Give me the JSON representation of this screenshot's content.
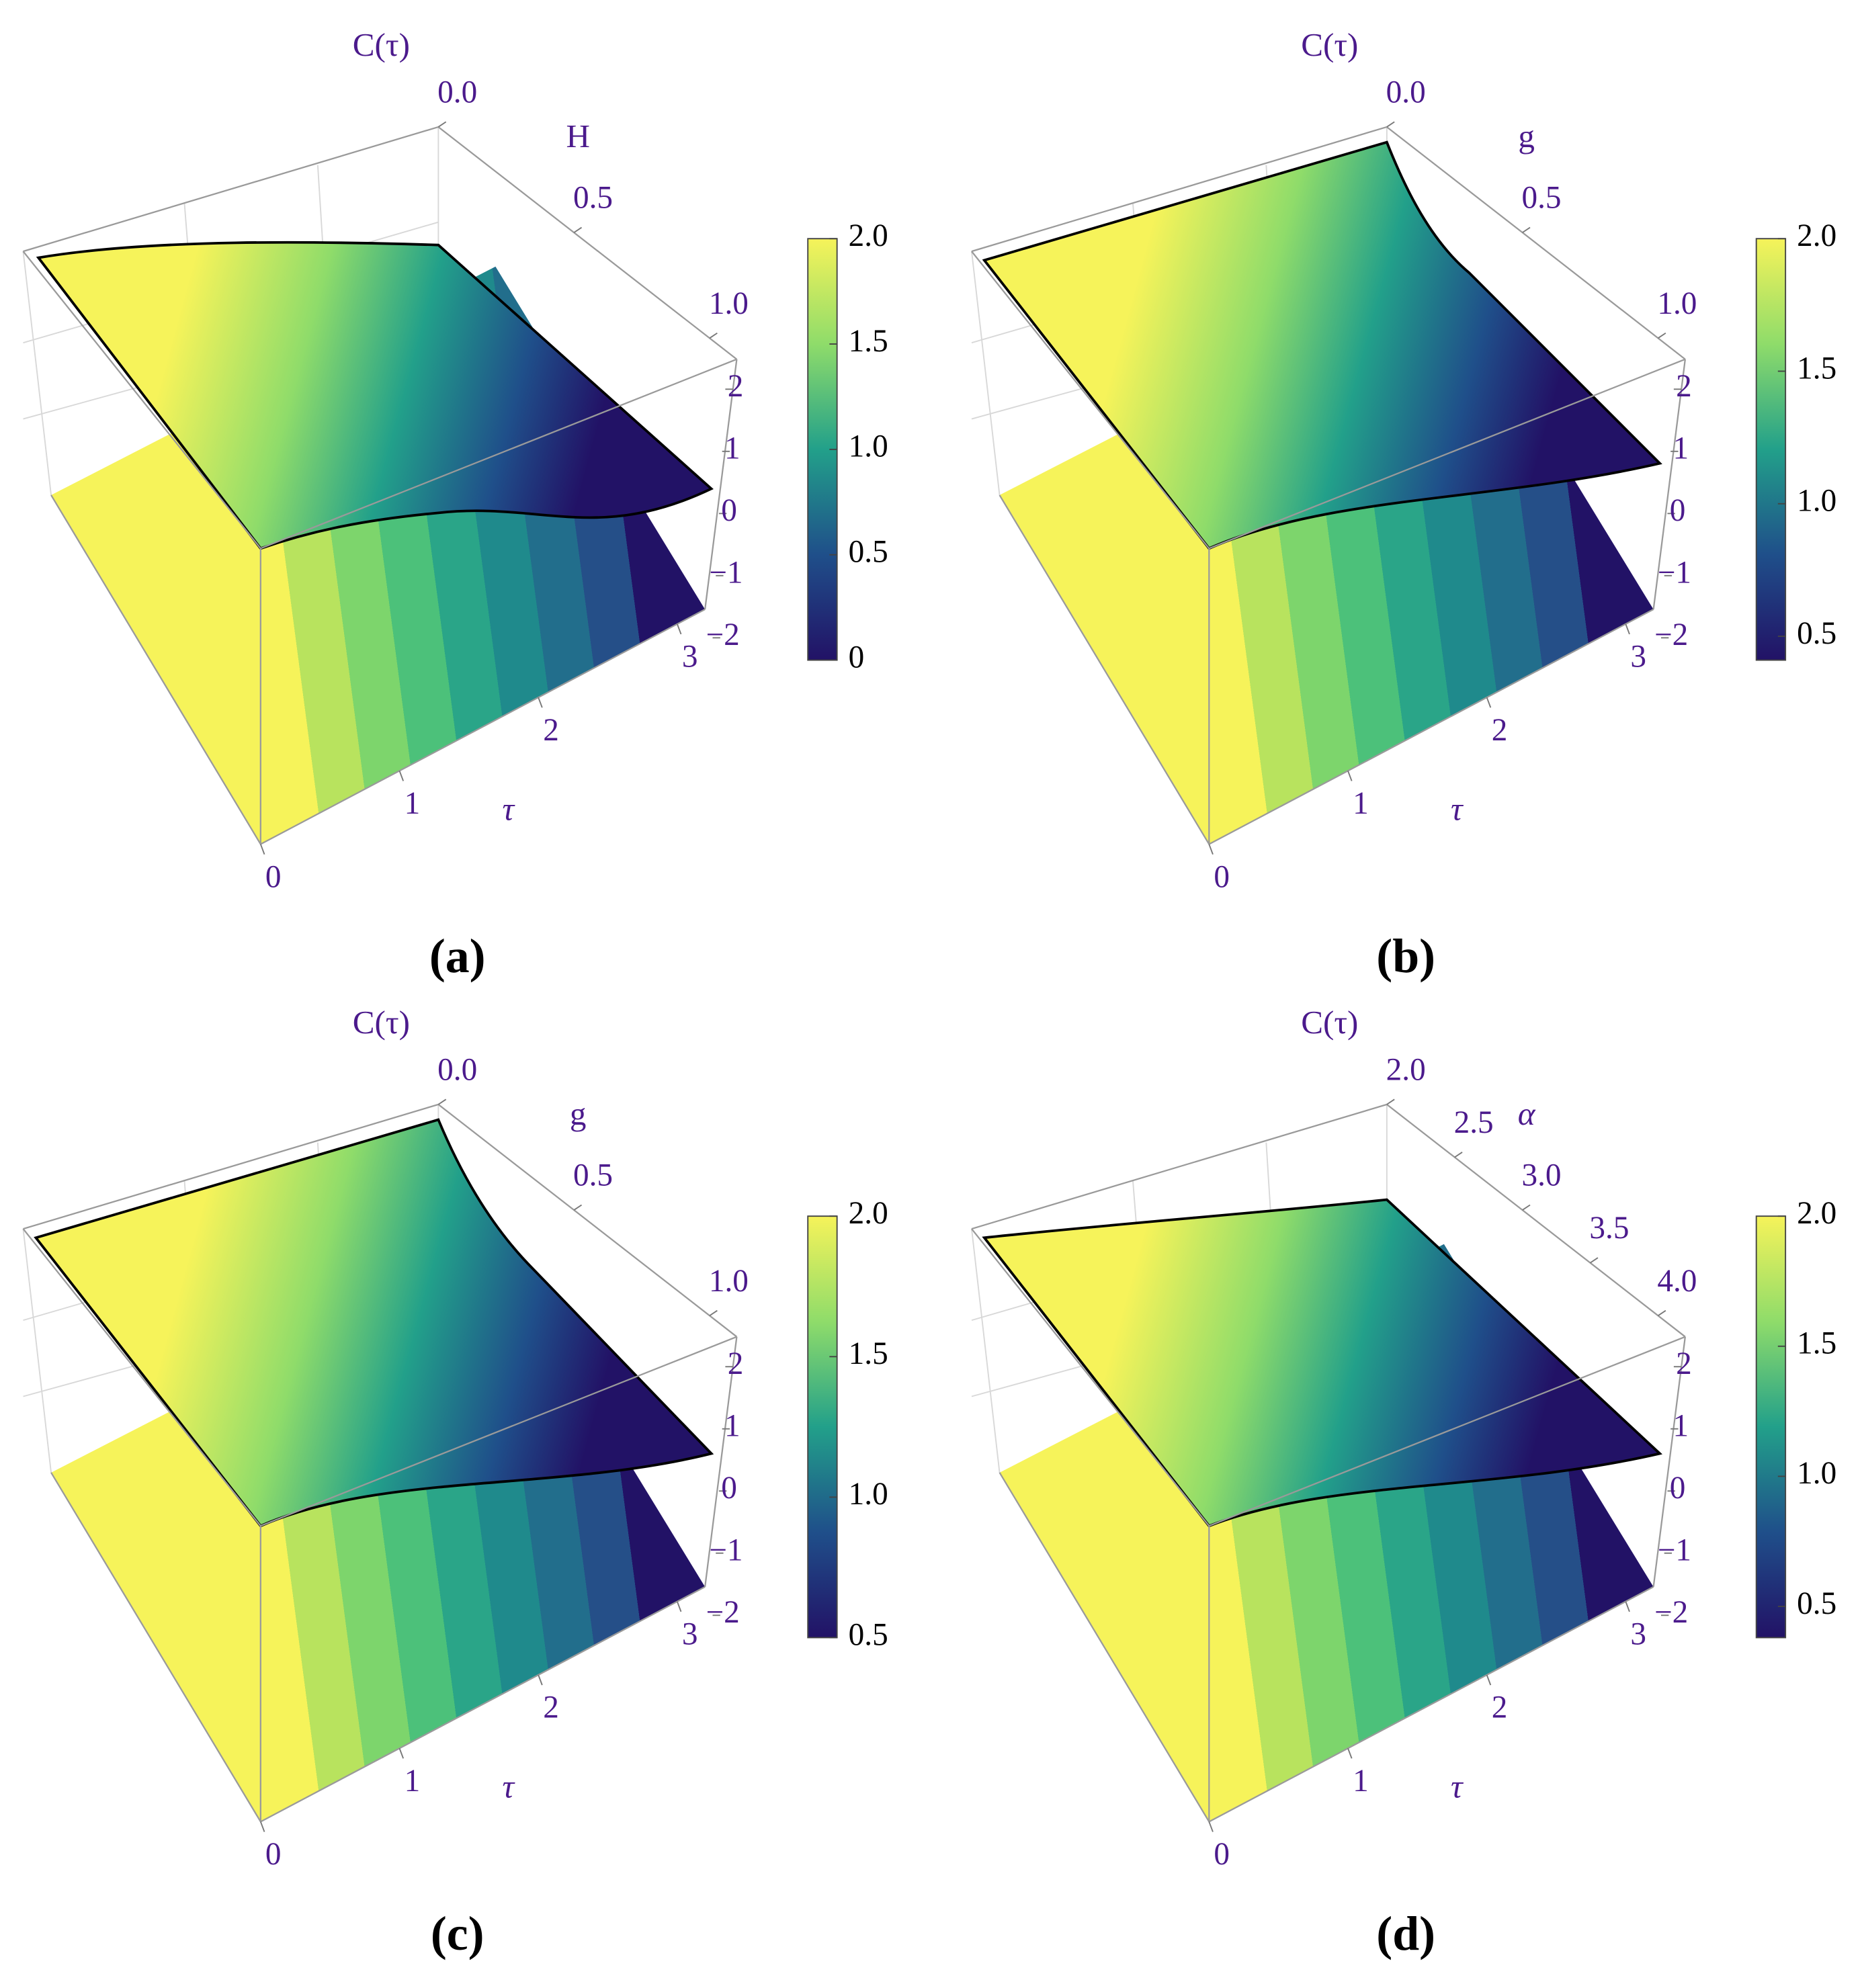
{
  "chart_data": [
    {
      "type": "surface",
      "caption": "(a)",
      "zlabel": "C(τ)",
      "ylabel": "H",
      "xlabel": "τ",
      "xlim": [
        0,
        3.2
      ],
      "xticks": [
        0,
        1,
        2,
        3
      ],
      "ylim": [
        0,
        1.1
      ],
      "yticks": [
        {
          "value": 0,
          "label": "0.0"
        },
        {
          "value": 0.5,
          "label": "0.5"
        },
        {
          "value": 1,
          "label": "1.0"
        }
      ],
      "zlim": [
        -2.4,
        2.4
      ],
      "zticks": [
        {
          "value": -2,
          "label": "−2"
        },
        {
          "value": -1,
          "label": "−1"
        },
        0,
        1,
        2
      ],
      "clim": [
        0,
        2
      ],
      "colorbar_ticks": [
        0,
        {
          "value": 0.5,
          "label": "0.5"
        },
        {
          "value": 1,
          "label": "1.0"
        },
        {
          "value": 1.5,
          "label": "1.5"
        },
        {
          "value": 2,
          "label": "2.0"
        }
      ]
    },
    {
      "type": "surface",
      "caption": "(b)",
      "zlabel": "C(τ)",
      "ylabel": "g",
      "xlabel": "τ",
      "xlim": [
        0,
        3.2
      ],
      "xticks": [
        0,
        1,
        2,
        3
      ],
      "ylim": [
        0,
        1.1
      ],
      "yticks": [
        {
          "value": 0,
          "label": "0.0"
        },
        {
          "value": 0.5,
          "label": "0.5"
        },
        {
          "value": 1,
          "label": "1.0"
        }
      ],
      "zlim": [
        -2.4,
        2.4
      ],
      "zticks": [
        {
          "value": -2,
          "label": "−2"
        },
        {
          "value": -1,
          "label": "−1"
        },
        0,
        1,
        2
      ],
      "clim": [
        0.41,
        2
      ],
      "colorbar_ticks": [
        {
          "value": 0.5,
          "label": "0.5"
        },
        {
          "value": 1,
          "label": "1.0"
        },
        {
          "value": 1.5,
          "label": "1.5"
        },
        {
          "value": 2,
          "label": "2.0"
        }
      ]
    },
    {
      "type": "surface",
      "caption": "(c)",
      "zlabel": "C(τ)",
      "ylabel": "g",
      "xlabel": "τ",
      "xlim": [
        0,
        3.2
      ],
      "xticks": [
        0,
        1,
        2,
        3
      ],
      "ylim": [
        0,
        1.1
      ],
      "yticks": [
        {
          "value": 0,
          "label": "0.0"
        },
        {
          "value": 0.5,
          "label": "0.5"
        },
        {
          "value": 1,
          "label": "1.0"
        }
      ],
      "zlim": [
        -2.4,
        2.4
      ],
      "zticks": [
        {
          "value": -2,
          "label": "−2"
        },
        {
          "value": -1,
          "label": "−1"
        },
        0,
        1,
        2
      ],
      "clim": [
        0.5,
        2
      ],
      "colorbar_ticks": [
        {
          "value": 0.5,
          "label": "0.5"
        },
        {
          "value": 1,
          "label": "1.0"
        },
        {
          "value": 1.5,
          "label": "1.5"
        },
        {
          "value": 2,
          "label": "2.0"
        }
      ]
    },
    {
      "type": "surface",
      "caption": "(d)",
      "zlabel": "C(τ)",
      "ylabel": "α",
      "xlabel": "τ",
      "xlim": [
        0,
        3.2
      ],
      "xticks": [
        0,
        1,
        2,
        3
      ],
      "ylim": [
        2,
        4.2
      ],
      "yticks": [
        {
          "value": 2,
          "label": "2.0"
        },
        {
          "value": 2.5,
          "label": "2.5"
        },
        {
          "value": 3,
          "label": "3.0"
        },
        {
          "value": 3.5,
          "label": "3.5"
        },
        {
          "value": 4,
          "label": "4.0"
        }
      ],
      "zlim": [
        -2.4,
        2.4
      ],
      "zticks": [
        {
          "value": -2,
          "label": "−2"
        },
        {
          "value": -1,
          "label": "−1"
        },
        0,
        1,
        2
      ],
      "clim": [
        0.38,
        2
      ],
      "colorbar_ticks": [
        {
          "value": 0.5,
          "label": "0.5"
        },
        {
          "value": 1,
          "label": "1.0"
        },
        {
          "value": 1.5,
          "label": "1.5"
        },
        {
          "value": 2,
          "label": "2.0"
        }
      ]
    }
  ]
}
